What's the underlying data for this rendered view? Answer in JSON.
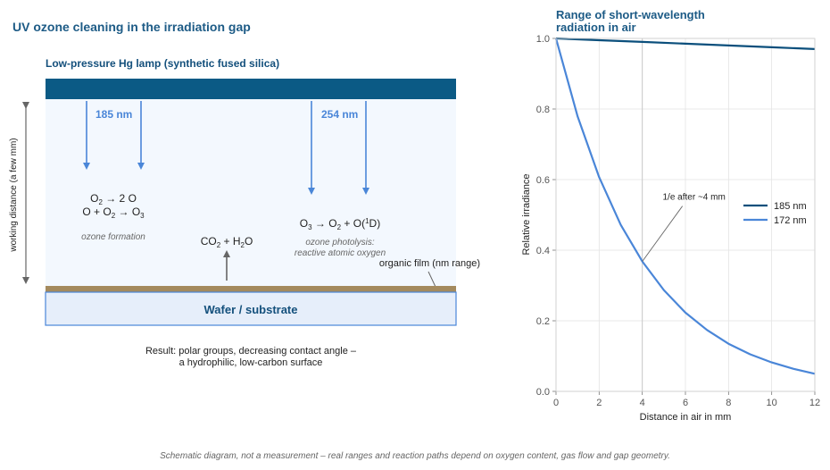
{
  "diagram": {
    "title": "UV ozone cleaning in the irradiation gap",
    "lamp_label": "Low-pressure Hg lamp (synthetic fused silica)",
    "wl_185": "185 nm",
    "wl_254": "254 nm",
    "working_distance": "working distance (a few mm)",
    "ozone_formation": "ozone formation",
    "photolysis_line1": "ozone photolysis:",
    "photolysis_line2": "reactive atomic oxygen",
    "organic_film": "organic film (nm range)",
    "wafer": "Wafer / substrate",
    "result_line1": "Result: polar groups, decreasing contact angle –",
    "result_line2": "a hydrophilic, low-carbon surface",
    "footnote": "Schematic diagram, not a measurement – real ranges and reaction paths depend on oxygen content, gas flow and gap geometry.",
    "colors": {
      "lamp": "#0b5a85",
      "arrow_blue": "#4a86d8",
      "film": "#a48a5e",
      "wafer_fill": "#e6eefa",
      "wafer_border": "#4a86d8",
      "gap_fill": "#f3f8fe"
    }
  },
  "chart_data": {
    "type": "line",
    "title": "Range of short-wavelength radiation in air",
    "title_line1": "Range of short-wavelength",
    "title_line2": "radiation in air",
    "xlabel": "Distance in air in mm",
    "ylabel": "Relative irradiance",
    "xlim": [
      0,
      12
    ],
    "ylim": [
      0,
      1.0
    ],
    "xticks": [
      "0",
      "2",
      "4",
      "6",
      "8",
      "10",
      "12"
    ],
    "yticks": [
      "0.0",
      "0.2",
      "0.4",
      "0.6",
      "0.8",
      "1.0"
    ],
    "grid": true,
    "legend_position": "right",
    "annotation": "1/e after ~4 mm",
    "annotation_point": {
      "x": 4,
      "y": 0.368
    },
    "series": [
      {
        "name": "185 nm",
        "color": "#0b4f7c",
        "x": [
          0,
          2,
          4,
          6,
          8,
          10,
          12
        ],
        "y": [
          1.0,
          0.995,
          0.99,
          0.985,
          0.98,
          0.975,
          0.97
        ]
      },
      {
        "name": "172 nm",
        "color": "#4a86d8",
        "x": [
          0,
          1,
          2,
          3,
          4,
          5,
          6,
          7,
          8,
          9,
          10,
          11,
          12
        ],
        "y": [
          1.0,
          0.779,
          0.607,
          0.472,
          0.368,
          0.287,
          0.223,
          0.174,
          0.135,
          0.105,
          0.082,
          0.064,
          0.05
        ]
      }
    ]
  }
}
